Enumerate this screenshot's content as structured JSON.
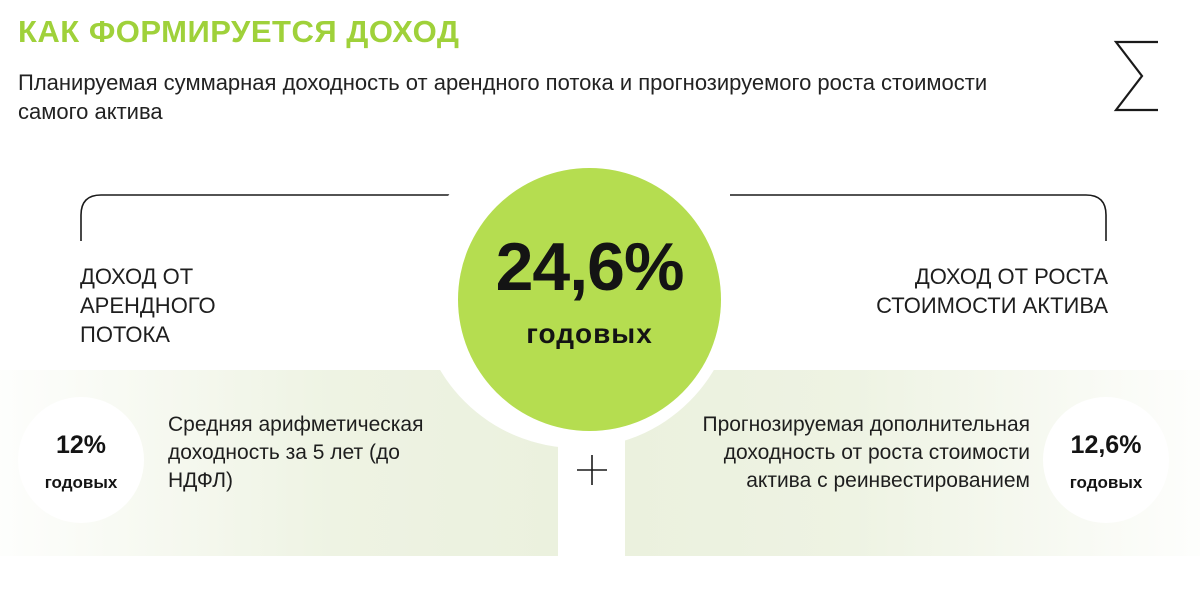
{
  "header": {
    "title": "КАК ФОРМИРУЕТСЯ ДОХОД",
    "subtitle": "Планируемая суммарная доходность от арендного потока и прогнозируемого роста стоимости самого актива"
  },
  "total": {
    "value": "24,6%",
    "unit": "годовых"
  },
  "left": {
    "heading": "ДОХОД ОТ АРЕНДНОГО ПОТОКА",
    "value": "12%",
    "unit": "годовых",
    "description": "Средняя арифметическая доходность за 5 лет (до НДФЛ)"
  },
  "right": {
    "heading": "ДОХОД ОТ РОСТА СТОИМОСТИ АКТИВА",
    "value": "12,6%",
    "unit": "годовых",
    "description": "Прогнозируемая дополнительная доходность от роста стоимости актива с реинвестированием"
  },
  "icons": {
    "sum": "sigma-icon",
    "plus": "plus-icon"
  },
  "colors": {
    "accent": "#9fd13a",
    "circle": "#b5dd50",
    "panel": "#ebf1de"
  }
}
